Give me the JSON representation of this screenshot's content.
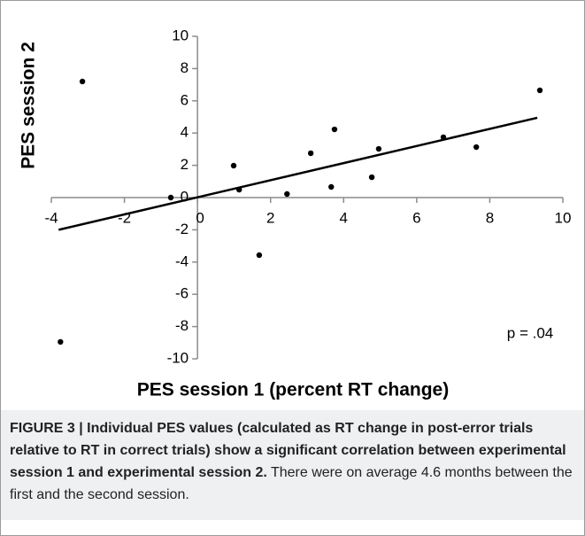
{
  "chart_data": {
    "type": "scatter",
    "x_label": "PES session 1 (percent RT change)",
    "y_label": "PES session 2",
    "annotation": "p = .04",
    "x": [
      -3.15,
      -3.75,
      -0.73,
      0.99,
      1.14,
      1.69,
      2.45,
      3.1,
      3.66,
      3.75,
      4.77,
      4.96,
      6.73,
      7.63,
      9.37
    ],
    "values": [
      7.2,
      -8.95,
      0,
      1.98,
      0.49,
      -3.57,
      0.22,
      2.75,
      0.66,
      4.23,
      1.26,
      3.02,
      3.74,
      3.13,
      6.65
    ],
    "color": "#000000",
    "trendline": {
      "x": [
        -3.8,
        9.3
      ],
      "y": [
        -2.0,
        4.95
      ]
    },
    "xlim": [
      -4,
      10
    ],
    "ylim": [
      -10,
      10
    ],
    "xticks": [
      -4,
      -2,
      0,
      2,
      4,
      6,
      8,
      10
    ],
    "yticks": [
      10,
      8,
      6,
      4,
      2,
      0,
      -2,
      -4,
      -6,
      -8,
      -10
    ]
  },
  "caption": {
    "title": "FIGURE 3 | Individual PES values (calculated as RT change in post-error trials relative to RT in correct trials) show a significant correlation between experimental session 1 and experimental session 2.",
    "text": "There were on average 4.6 months between the first and the second session."
  }
}
